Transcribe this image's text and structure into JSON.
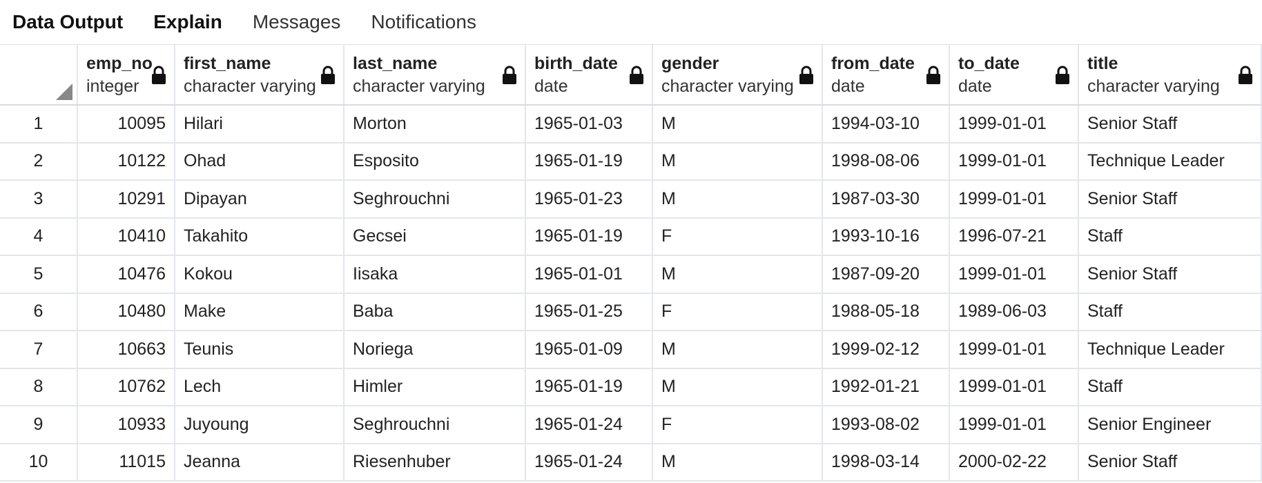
{
  "tabs": [
    "Data Output",
    "Explain",
    "Messages",
    "Notifications"
  ],
  "table": {
    "columns": [
      {
        "name": "emp_no",
        "type": "integer"
      },
      {
        "name": "first_name",
        "type": "character varying"
      },
      {
        "name": "last_name",
        "type": "character varying"
      },
      {
        "name": "birth_date",
        "type": "date"
      },
      {
        "name": "gender",
        "type": "character varying"
      },
      {
        "name": "from_date",
        "type": "date"
      },
      {
        "name": "to_date",
        "type": "date"
      },
      {
        "name": "title",
        "type": "character varying"
      }
    ],
    "rows": [
      [
        1,
        10095,
        "Hilari",
        "Morton",
        "1965-01-03",
        "M",
        "1994-03-10",
        "1999-01-01",
        "Senior Staff"
      ],
      [
        2,
        10122,
        "Ohad",
        "Esposito",
        "1965-01-19",
        "M",
        "1998-08-06",
        "1999-01-01",
        "Technique Leader"
      ],
      [
        3,
        10291,
        "Dipayan",
        "Seghrouchni",
        "1965-01-23",
        "M",
        "1987-03-30",
        "1999-01-01",
        "Senior Staff"
      ],
      [
        4,
        10410,
        "Takahito",
        "Gecsei",
        "1965-01-19",
        "F",
        "1993-10-16",
        "1996-07-21",
        "Staff"
      ],
      [
        5,
        10476,
        "Kokou",
        "Iisaka",
        "1965-01-01",
        "M",
        "1987-09-20",
        "1999-01-01",
        "Senior Staff"
      ],
      [
        6,
        10480,
        "Make",
        "Baba",
        "1965-01-25",
        "F",
        "1988-05-18",
        "1989-06-03",
        "Staff"
      ],
      [
        7,
        10663,
        "Teunis",
        "Noriega",
        "1965-01-09",
        "M",
        "1999-02-12",
        "1999-01-01",
        "Technique Leader"
      ],
      [
        8,
        10762,
        "Lech",
        "Himler",
        "1965-01-19",
        "M",
        "1992-01-21",
        "1999-01-01",
        "Staff"
      ],
      [
        9,
        10933,
        "Juyoung",
        "Seghrouchni",
        "1965-01-24",
        "F",
        "1993-08-02",
        "1999-01-01",
        "Senior Engineer"
      ],
      [
        10,
        11015,
        "Jeanna",
        "Riesenhuber",
        "1965-01-24",
        "M",
        "1998-03-14",
        "2000-02-22",
        "Senior Staff"
      ]
    ]
  }
}
